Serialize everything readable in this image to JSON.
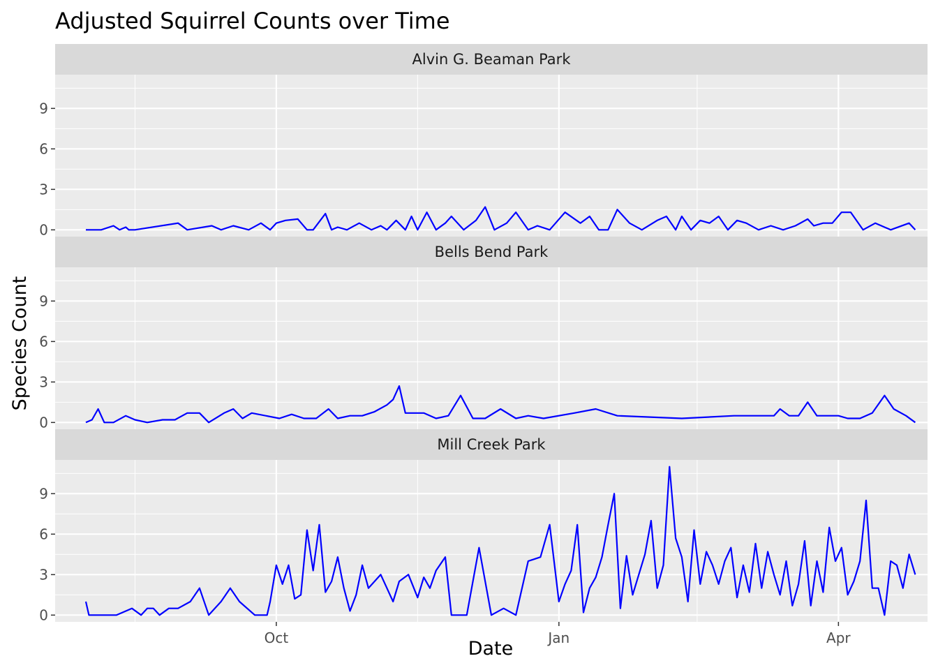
{
  "chart_data": {
    "type": "line",
    "title": "Adjusted Squirrel Counts over Time",
    "xlabel": "Date",
    "ylabel": "Species Count",
    "x_tick_labels": [
      "Oct",
      "Jan",
      "Apr"
    ],
    "y_ticks": [
      0,
      3,
      6,
      9
    ],
    "y_tick_labels": [
      "0",
      "3",
      "6",
      "9"
    ],
    "ylim": [
      -0.5,
      11.5
    ],
    "xlim": [
      "2023-07-21",
      "2024-04-30"
    ],
    "x_major_breaks": [
      "2023-10-01",
      "2024-01-01",
      "2024-04-01"
    ],
    "x_minor_breaks": [
      "2023-08-16",
      "2023-11-16",
      "2024-02-15"
    ],
    "grid": true,
    "line_color": "#0000ff",
    "panel_background": "#ebebeb",
    "strip_background": "#d9d9d9",
    "facets": [
      {
        "name": "Alvin G. Beaman Park",
        "x": [
          "2023-07-31",
          "2023-08-05",
          "2023-08-09",
          "2023-08-11",
          "2023-08-13",
          "2023-08-14",
          "2023-08-16",
          "2023-08-30",
          "2023-09-02",
          "2023-09-10",
          "2023-09-13",
          "2023-09-17",
          "2023-09-22",
          "2023-09-26",
          "2023-09-29",
          "2023-10-01",
          "2023-10-04",
          "2023-10-08",
          "2023-10-11",
          "2023-10-13",
          "2023-10-17",
          "2023-10-19",
          "2023-10-21",
          "2023-10-24",
          "2023-10-28",
          "2023-11-01",
          "2023-11-04",
          "2023-11-06",
          "2023-11-09",
          "2023-11-12",
          "2023-11-14",
          "2023-11-16",
          "2023-11-19",
          "2023-11-22",
          "2023-11-25",
          "2023-11-27",
          "2023-12-01",
          "2023-12-05",
          "2023-12-08",
          "2023-12-11",
          "2023-12-15",
          "2023-12-18",
          "2023-12-22",
          "2023-12-25",
          "2023-12-29",
          "2024-01-03",
          "2024-01-08",
          "2024-01-11",
          "2024-01-14",
          "2024-01-17",
          "2024-01-20",
          "2024-01-24",
          "2024-01-28",
          "2024-02-02",
          "2024-02-05",
          "2024-02-08",
          "2024-02-10",
          "2024-02-13",
          "2024-02-16",
          "2024-02-19",
          "2024-02-22",
          "2024-02-25",
          "2024-02-28",
          "2024-03-02",
          "2024-03-06",
          "2024-03-10",
          "2024-03-14",
          "2024-03-18",
          "2024-03-22",
          "2024-03-24",
          "2024-03-27",
          "2024-03-30",
          "2024-04-02",
          "2024-04-05",
          "2024-04-09",
          "2024-04-13",
          "2024-04-18",
          "2024-04-24",
          "2024-04-26"
        ],
        "y": [
          0,
          0,
          0.3,
          0,
          0.2,
          0,
          0,
          0.5,
          0,
          0.3,
          0,
          0.3,
          0,
          0.5,
          0,
          0.5,
          0.7,
          0.8,
          0,
          0,
          1.2,
          0,
          0.2,
          0,
          0.5,
          0,
          0.3,
          0,
          0.7,
          0,
          1.0,
          0,
          1.3,
          0,
          0.5,
          1.0,
          0,
          0.7,
          1.7,
          0,
          0.5,
          1.3,
          0,
          0.3,
          0,
          1.3,
          0.5,
          1.0,
          0,
          0,
          1.5,
          0.5,
          0,
          0.7,
          1.0,
          0,
          1.0,
          0,
          0.7,
          0.5,
          1.0,
          0,
          0.7,
          0.5,
          0,
          0.3,
          0,
          0.3,
          0.8,
          0.3,
          0.5,
          0.5,
          1.3,
          1.3,
          0,
          0.5,
          0,
          0.5,
          0
        ],
        "series_points_approx": true
      },
      {
        "name": "Bells Bend Park",
        "x": [
          "2023-07-31",
          "2023-08-02",
          "2023-08-04",
          "2023-08-06",
          "2023-08-09",
          "2023-08-13",
          "2023-08-16",
          "2023-08-20",
          "2023-08-25",
          "2023-08-29",
          "2023-09-02",
          "2023-09-06",
          "2023-09-09",
          "2023-09-14",
          "2023-09-17",
          "2023-09-20",
          "2023-09-23",
          "2023-10-02",
          "2023-10-06",
          "2023-10-10",
          "2023-10-14",
          "2023-10-18",
          "2023-10-21",
          "2023-10-25",
          "2023-10-29",
          "2023-11-02",
          "2023-11-06",
          "2023-11-08",
          "2023-11-10",
          "2023-11-12",
          "2023-11-15",
          "2023-11-18",
          "2023-11-22",
          "2023-11-26",
          "2023-11-30",
          "2023-12-04",
          "2023-12-08",
          "2023-12-13",
          "2023-12-18",
          "2023-12-22",
          "2023-12-27",
          "2024-01-06",
          "2024-01-13",
          "2024-01-20",
          "2024-02-10",
          "2024-02-27",
          "2024-03-08",
          "2024-03-11",
          "2024-03-13",
          "2024-03-16",
          "2024-03-19",
          "2024-03-22",
          "2024-03-25",
          "2024-03-28",
          "2024-04-01",
          "2024-04-04",
          "2024-04-08",
          "2024-04-12",
          "2024-04-16",
          "2024-04-19",
          "2024-04-23",
          "2024-04-26"
        ],
        "y": [
          0,
          0.2,
          1.0,
          0,
          0,
          0.5,
          0.2,
          0,
          0.2,
          0.2,
          0.7,
          0.7,
          0,
          0.7,
          1.0,
          0.3,
          0.7,
          0.3,
          0.6,
          0.3,
          0.3,
          1.0,
          0.3,
          0.5,
          0.5,
          0.8,
          1.3,
          1.7,
          2.7,
          0.7,
          0.7,
          0.7,
          0.3,
          0.5,
          2.0,
          0.3,
          0.3,
          1.0,
          0.3,
          0.5,
          0.3,
          0.7,
          1.0,
          0.5,
          0.3,
          0.5,
          0.5,
          0.5,
          1.0,
          0.5,
          0.5,
          1.5,
          0.5,
          0.5,
          0.5,
          0.3,
          0.3,
          0.7,
          2.0,
          1.0,
          0.5,
          0
        ],
        "series_points_approx": true
      },
      {
        "name": "Mill Creek Park",
        "x": [
          "2023-07-31",
          "2023-08-01",
          "2023-08-05",
          "2023-08-10",
          "2023-08-15",
          "2023-08-18",
          "2023-08-20",
          "2023-08-22",
          "2023-08-24",
          "2023-08-27",
          "2023-08-30",
          "2023-09-03",
          "2023-09-06",
          "2023-09-09",
          "2023-09-13",
          "2023-09-16",
          "2023-09-19",
          "2023-09-24",
          "2023-09-28",
          "2023-09-29",
          "2023-10-01",
          "2023-10-03",
          "2023-10-05",
          "2023-10-07",
          "2023-10-09",
          "2023-10-11",
          "2023-10-13",
          "2023-10-15",
          "2023-10-17",
          "2023-10-19",
          "2023-10-21",
          "2023-10-23",
          "2023-10-25",
          "2023-10-27",
          "2023-10-29",
          "2023-10-31",
          "2023-11-02",
          "2023-11-04",
          "2023-11-06",
          "2023-11-08",
          "2023-11-10",
          "2023-11-13",
          "2023-11-16",
          "2023-11-18",
          "2023-11-20",
          "2023-11-22",
          "2023-11-25",
          "2023-11-27",
          "2023-11-30",
          "2023-12-02",
          "2023-12-06",
          "2023-12-10",
          "2023-12-14",
          "2023-12-18",
          "2023-12-22",
          "2023-12-26",
          "2023-12-29",
          "2024-01-01",
          "2024-01-03",
          "2024-01-05",
          "2024-01-07",
          "2024-01-09",
          "2024-01-11",
          "2024-01-13",
          "2024-01-15",
          "2024-01-17",
          "2024-01-19",
          "2024-01-21",
          "2024-01-23",
          "2024-01-25",
          "2024-01-27",
          "2024-01-29",
          "2024-01-31",
          "2024-02-02",
          "2024-02-04",
          "2024-02-06",
          "2024-02-08",
          "2024-02-10",
          "2024-02-12",
          "2024-02-14",
          "2024-02-16",
          "2024-02-18",
          "2024-02-20",
          "2024-02-22",
          "2024-02-24",
          "2024-02-26",
          "2024-02-28",
          "2024-03-01",
          "2024-03-03",
          "2024-03-05",
          "2024-03-07",
          "2024-03-09",
          "2024-03-11",
          "2024-03-13",
          "2024-03-15",
          "2024-03-17",
          "2024-03-19",
          "2024-03-21",
          "2024-03-23",
          "2024-03-25",
          "2024-03-27",
          "2024-03-29",
          "2024-03-31",
          "2024-04-02",
          "2024-04-04",
          "2024-04-06",
          "2024-04-08",
          "2024-04-10",
          "2024-04-12",
          "2024-04-14",
          "2024-04-16",
          "2024-04-18",
          "2024-04-20",
          "2024-04-22",
          "2024-04-24",
          "2024-04-26"
        ],
        "y": [
          1.0,
          0,
          0,
          0,
          0.5,
          0,
          0.5,
          0.5,
          0,
          0.5,
          0.5,
          1.0,
          2.0,
          0,
          1.0,
          2.0,
          1.0,
          0,
          0,
          1.0,
          3.7,
          2.3,
          3.7,
          1.2,
          1.5,
          6.3,
          3.3,
          6.7,
          1.7,
          2.5,
          4.3,
          2.0,
          0.3,
          1.5,
          3.7,
          2.0,
          2.5,
          3.0,
          2.0,
          1.0,
          2.5,
          3.0,
          1.3,
          2.8,
          2.0,
          3.3,
          4.3,
          0,
          0,
          0,
          5.0,
          0,
          0.5,
          0,
          4.0,
          4.3,
          6.7,
          1.0,
          2.3,
          3.3,
          6.7,
          0.2,
          2.0,
          2.8,
          4.3,
          6.7,
          9.0,
          0.5,
          4.4,
          1.5,
          3.0,
          4.5,
          7.0,
          2.0,
          3.7,
          11.0,
          5.7,
          4.3,
          1.0,
          6.3,
          2.3,
          4.7,
          3.7,
          2.3,
          4.0,
          5.0,
          1.3,
          3.7,
          1.7,
          5.3,
          2.0,
          4.7,
          3.0,
          1.5,
          4.0,
          0.7,
          2.3,
          5.5,
          0.7,
          4.0,
          1.7,
          6.5,
          4.0,
          5.0,
          1.5,
          2.5,
          4.0,
          8.5,
          2.0,
          2.0,
          0,
          4.0,
          3.7,
          2.0,
          4.5,
          3.0
        ],
        "series_points_approx": true
      }
    ]
  }
}
